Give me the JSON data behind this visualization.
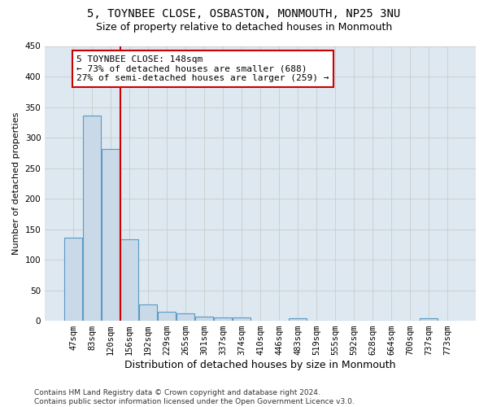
{
  "title": "5, TOYNBEE CLOSE, OSBASTON, MONMOUTH, NP25 3NU",
  "subtitle": "Size of property relative to detached houses in Monmouth",
  "xlabel": "Distribution of detached houses by size in Monmouth",
  "ylabel": "Number of detached properties",
  "categories": [
    "47sqm",
    "83sqm",
    "120sqm",
    "156sqm",
    "192sqm",
    "229sqm",
    "265sqm",
    "301sqm",
    "337sqm",
    "374sqm",
    "410sqm",
    "446sqm",
    "483sqm",
    "519sqm",
    "555sqm",
    "592sqm",
    "628sqm",
    "664sqm",
    "700sqm",
    "737sqm",
    "773sqm"
  ],
  "values": [
    136,
    336,
    282,
    134,
    27,
    15,
    12,
    7,
    6,
    5,
    0,
    0,
    4,
    0,
    0,
    0,
    0,
    0,
    0,
    4,
    0
  ],
  "bar_color": "#c9d9e8",
  "bar_edgecolor": "#5a9ac5",
  "bar_linewidth": 0.8,
  "vline_x": 2.5,
  "vline_color": "#cc0000",
  "vline_linewidth": 1.5,
  "annotation_text": "5 TOYNBEE CLOSE: 148sqm\n← 73% of detached houses are smaller (688)\n27% of semi-detached houses are larger (259) →",
  "annotation_fontsize": 8,
  "annotation_box_color": "white",
  "annotation_box_edgecolor": "#cc0000",
  "ylim": [
    0,
    450
  ],
  "yticks": [
    0,
    50,
    100,
    150,
    200,
    250,
    300,
    350,
    400,
    450
  ],
  "grid_color": "#cccccc",
  "background_color": "#dde8f0",
  "footer_text": "Contains HM Land Registry data © Crown copyright and database right 2024.\nContains public sector information licensed under the Open Government Licence v3.0.",
  "title_fontsize": 10,
  "subtitle_fontsize": 9,
  "xlabel_fontsize": 9,
  "ylabel_fontsize": 8,
  "tick_fontsize": 7.5,
  "footer_fontsize": 6.5
}
